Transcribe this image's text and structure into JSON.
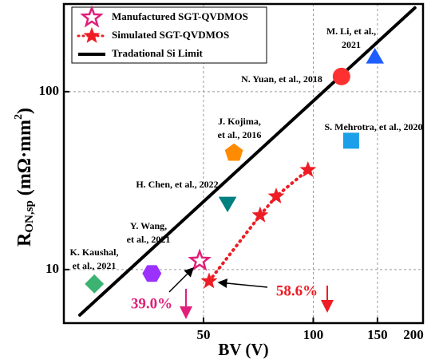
{
  "chart_data": {
    "type": "scatter",
    "xlabel": "BV (V)",
    "ylabel": [
      "R",
      "ON,sp",
      " (mΩ·mm",
      "2",
      ")"
    ],
    "xlim": [
      20.7,
      200
    ],
    "ylim": [
      5,
      311
    ],
    "log_x": true,
    "log_y": true,
    "grid": true,
    "xticks": [
      50,
      100,
      150,
      200
    ],
    "yticks": [
      10,
      100
    ],
    "legend": "upper left",
    "series": [
      {
        "name": "Manufactured SGT-QVDMOS",
        "color": "#e0207a",
        "marker": "star-open",
        "x": [
          48.8
        ],
        "values": [
          11.2
        ]
      },
      {
        "name": "Simulated SGT-QVDMOS",
        "color": "#ee1c24",
        "marker": "star",
        "line": "dotted",
        "x": [
          51.8,
          71.5,
          79.1,
          96.7
        ],
        "values": [
          8.6,
          20.2,
          25.8,
          36.3
        ]
      },
      {
        "name": "Tradational Si Limit",
        "color": "#000000",
        "marker": "line",
        "x": [
          22.9,
          190
        ],
        "values": [
          5.55,
          296
        ]
      }
    ],
    "points": [
      {
        "label": [
          "K. Kaushal,",
          "et al., 2021"
        ],
        "marker": "diamond",
        "color": "#3cb371",
        "x": 25.1,
        "value": 8.3
      },
      {
        "label": [
          "Y. Wang,",
          "et al., 2021"
        ],
        "marker": "hexagon",
        "color": "#9b30ff",
        "x": 36.1,
        "value": 9.5
      },
      {
        "label": [
          "H. Chen, et al., 2022"
        ],
        "marker": "triangle-down",
        "color": "#00807f",
        "x": 58.2,
        "value": 24.0
      },
      {
        "label": [
          "J. Kojima,",
          "et al., 2016"
        ],
        "marker": "pentagon",
        "color": "#ff8c00",
        "x": 60.6,
        "value": 45.2
      },
      {
        "label": [
          "N. Yuan, et al., 2018"
        ],
        "marker": "circle",
        "color": "#ff3030",
        "x": 119.5,
        "value": 121.7
      },
      {
        "label": [
          "M. Li, et al.,",
          "2021"
        ],
        "marker": "triangle-up",
        "color": "#1e5eff",
        "x": 147.6,
        "value": 154
      },
      {
        "label": [
          "S. Mehrotra, et al., 2020"
        ],
        "marker": "square",
        "color": "#1a9fe8",
        "x": 127,
        "value": 53
      }
    ],
    "annotations": [
      {
        "text": "39.0%",
        "color": "#e0207a"
      },
      {
        "text": "58.6%",
        "color": "#ee1c24"
      }
    ]
  }
}
